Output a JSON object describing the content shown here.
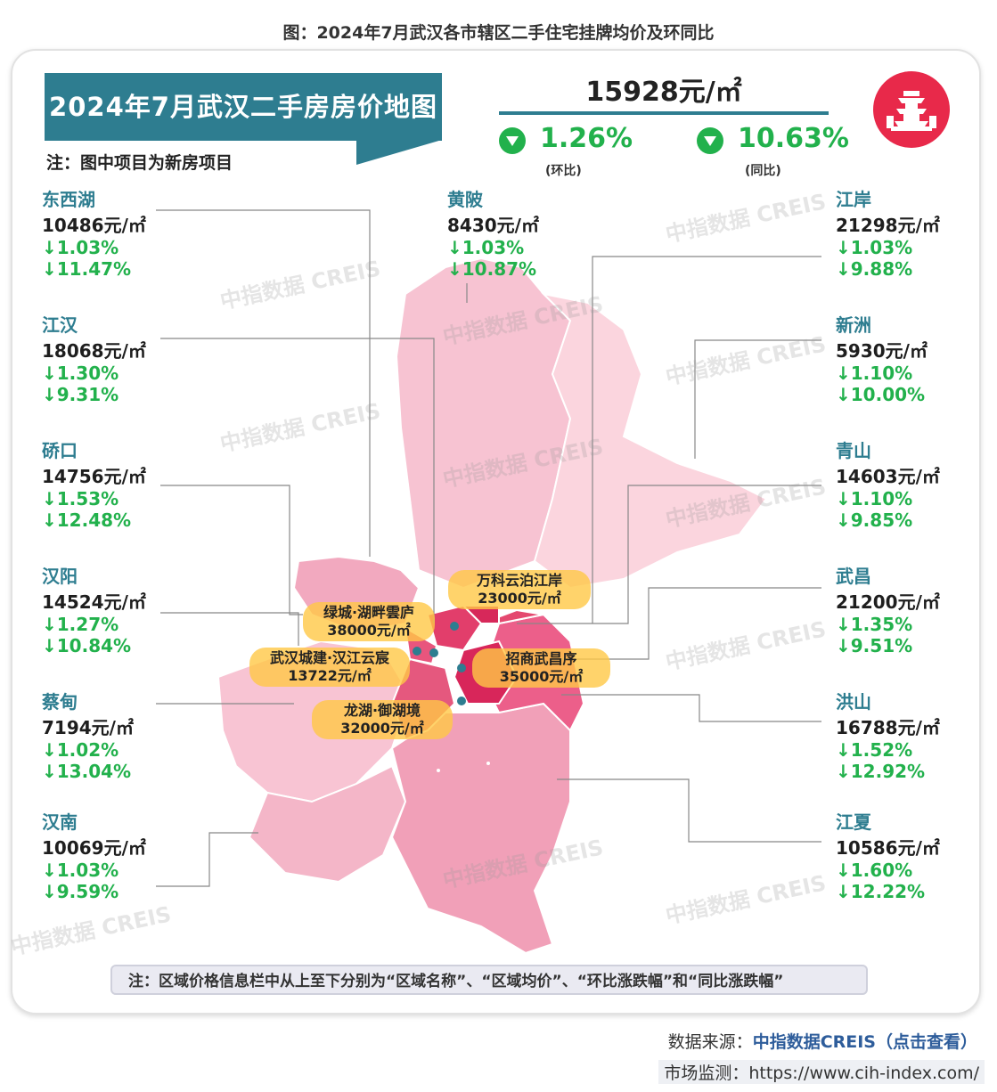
{
  "caption": "图：2024年7月武汉各市辖区二手住宅挂牌均价及环同比",
  "banner": {
    "title": "2024年7月武汉二手房房价地图",
    "note": "注：图中项目为新房项目"
  },
  "summary": {
    "avg_price": "15928元/㎡",
    "mom_value": "1.26%",
    "mom_label": "(环比)",
    "yoy_value": "10.63%",
    "yoy_label": "(同比)"
  },
  "colors": {
    "accent": "#2e7d90",
    "green": "#22b14c",
    "logo_red": "#e8294a"
  },
  "districts_left": [
    {
      "name": "东西湖",
      "price": "10486元/㎡",
      "mom": "↓1.03%",
      "yoy": "↓11.47%"
    },
    {
      "name": "江汉",
      "price": "18068元/㎡",
      "mom": "↓1.30%",
      "yoy": "↓9.31%"
    },
    {
      "name": "硚口",
      "price": "14756元/㎡",
      "mom": "↓1.53%",
      "yoy": "↓12.48%"
    },
    {
      "name": "汉阳",
      "price": "14524元/㎡",
      "mom": "↓1.27%",
      "yoy": "↓10.84%"
    },
    {
      "name": "蔡甸",
      "price": "7194元/㎡",
      "mom": "↓1.02%",
      "yoy": "↓13.04%"
    },
    {
      "name": "汉南",
      "price": "10069元/㎡",
      "mom": "↓1.03%",
      "yoy": "↓9.59%"
    }
  ],
  "districts_top": [
    {
      "name": "黄陂",
      "price": "8430元/㎡",
      "mom": "↓1.03%",
      "yoy": "↓10.87%"
    }
  ],
  "districts_right": [
    {
      "name": "江岸",
      "price": "21298元/㎡",
      "mom": "↓1.03%",
      "yoy": "↓9.88%"
    },
    {
      "name": "新洲",
      "price": "5930元/㎡",
      "mom": "↓1.10%",
      "yoy": "↓10.00%"
    },
    {
      "name": "青山",
      "price": "14603元/㎡",
      "mom": "↓1.10%",
      "yoy": "↓9.85%"
    },
    {
      "name": "武昌",
      "price": "21200元/㎡",
      "mom": "↓1.35%",
      "yoy": "↓9.51%"
    },
    {
      "name": "洪山",
      "price": "16788元/㎡",
      "mom": "↓1.52%",
      "yoy": "↓12.92%"
    },
    {
      "name": "江夏",
      "price": "10586元/㎡",
      "mom": "↓1.60%",
      "yoy": "↓12.22%"
    }
  ],
  "projects": [
    {
      "name": "万科云泊江岸",
      "price": "23000元/㎡"
    },
    {
      "name": "绿城·湖畔雲庐",
      "price": "38000元/㎡"
    },
    {
      "name": "武汉城建·汉江云宸",
      "price": "13722元/㎡"
    },
    {
      "name": "招商武昌序",
      "price": "35000元/㎡"
    },
    {
      "name": "龙湖·御湖境",
      "price": "32000元/㎡"
    }
  ],
  "watermark": "中指数据 CREIS",
  "bottom_note": "注：区域价格信息栏中从上至下分别为“区域名称”、“区域均价”、“环比涨跌幅”和“同比涨跌幅”",
  "source": {
    "prefix": "数据来源：",
    "link": "中指数据CREIS（点击查看）"
  },
  "monitor": "市场监测：https://www.cih-index.com/"
}
